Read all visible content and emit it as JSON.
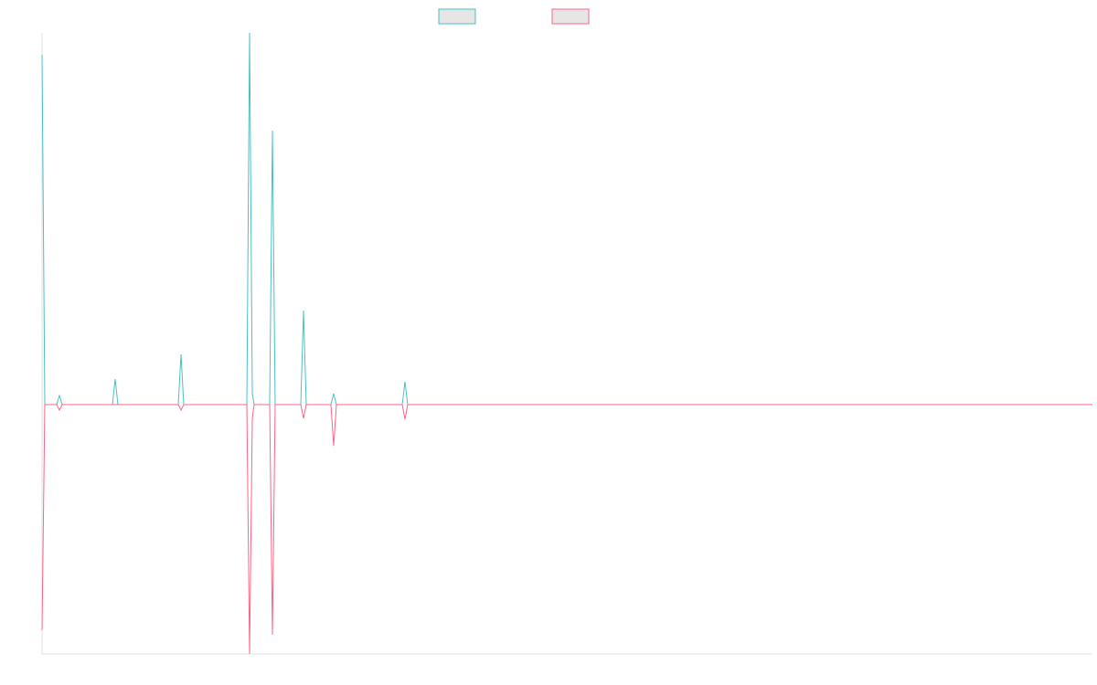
{
  "chart_data": {
    "type": "line",
    "x": [
      0,
      3,
      16,
      19,
      22,
      77,
      80,
      83,
      149,
      152,
      155,
      224,
      227,
      230,
      232,
      249,
      252,
      255,
      283,
      286,
      289,
      316,
      319,
      322,
      394,
      397,
      400,
      1149
    ],
    "series": [
      {
        "color": "#4bc0c0",
        "values": [
          383,
          0,
          0,
          10,
          0,
          0,
          28,
          0,
          0,
          55,
          0,
          0,
          407,
          12,
          0,
          0,
          300,
          0,
          0,
          103,
          0,
          0,
          12,
          0,
          0,
          25,
          0,
          0
        ]
      },
      {
        "color": "#ff6384",
        "values": [
          -247,
          0,
          0,
          -6,
          0,
          0,
          0,
          0,
          0,
          -6,
          0,
          0,
          -273,
          -15,
          0,
          0,
          -252,
          0,
          0,
          -15,
          0,
          0,
          -45,
          0,
          0,
          -16,
          0,
          0
        ]
      }
    ],
    "xlim": [
      0,
      1149
    ],
    "ylim": [
      -273,
      407
    ],
    "grid": false
  }
}
